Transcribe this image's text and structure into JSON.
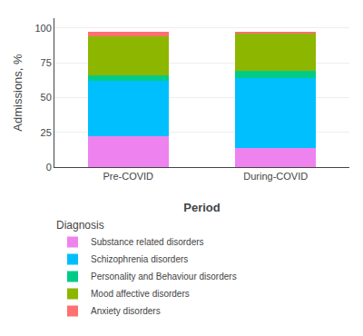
{
  "chart_data": {
    "type": "bar",
    "stacked": true,
    "categories": [
      "Pre-COVID",
      "During-COVID"
    ],
    "series": [
      {
        "name": "Substance related disorders",
        "color": "#EE82EE",
        "values": [
          22,
          14
        ]
      },
      {
        "name": "Schizophrenia disorders",
        "color": "#00BFFF",
        "values": [
          40,
          50
        ]
      },
      {
        "name": "Personality and Behaviour disorders",
        "color": "#00CC88",
        "values": [
          4,
          5
        ]
      },
      {
        "name": "Mood affective disorders",
        "color": "#8DB600",
        "values": [
          28,
          27
        ]
      },
      {
        "name": "Anxiety disorders",
        "color": "#FF7070",
        "values": [
          3,
          1
        ]
      }
    ],
    "xlabel": "Period",
    "ylabel": "Admissions, %",
    "legend_title": "Diagnosis",
    "legend": "bottom",
    "ylim": [
      0,
      107
    ],
    "yticks": [
      0,
      25,
      50,
      75,
      100
    ],
    "grid": true
  }
}
